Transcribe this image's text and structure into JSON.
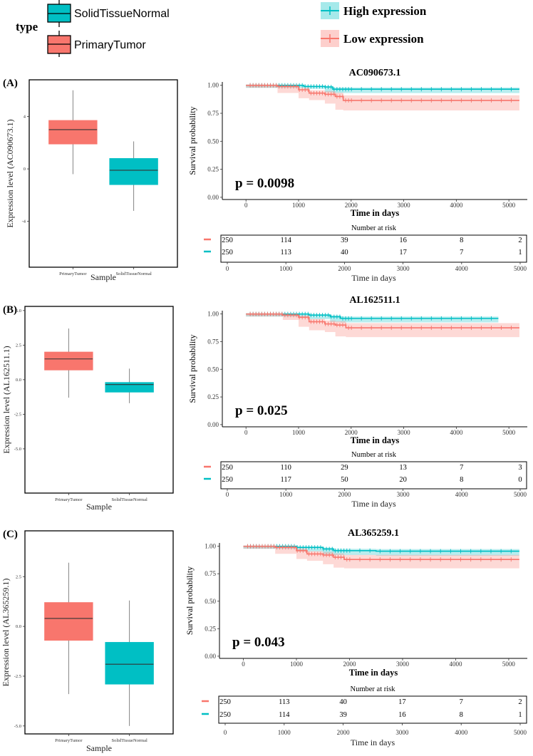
{
  "legend_box": {
    "title": "type",
    "items": [
      {
        "label": "SolidTissueNormal",
        "color": "#00BFC4"
      },
      {
        "label": "PrimaryTumor",
        "color": "#F8766D"
      }
    ]
  },
  "legend_km": {
    "items": [
      {
        "label": "High expression",
        "color": "#00BFC4"
      },
      {
        "label": "Low expression",
        "color": "#F8766D"
      }
    ]
  },
  "chart_data": [
    {
      "panel": "(A)",
      "type": "box",
      "xlabel": "Sample",
      "ylabel": "Expression level (AC090673.1)",
      "categories": [
        "PrimaryTumor",
        "SolidTissueNormal"
      ],
      "yticks": [
        "4",
        "0",
        "-4"
      ],
      "ytick_values": [
        4,
        0,
        -4
      ],
      "ylim": [
        -7.5,
        6.8
      ],
      "boxes": [
        {
          "category": "PrimaryTumor",
          "min": -0.4,
          "q1": 1.9,
          "median": 3.0,
          "q3": 3.7,
          "max": 6.0,
          "color": "#F8766D"
        },
        {
          "category": "SolidTissueNormal",
          "min": -3.2,
          "q1": -1.2,
          "median": -0.1,
          "q3": 0.8,
          "max": 2.1,
          "color": "#00BFC4"
        }
      ]
    },
    {
      "panel": "(A)",
      "type": "line",
      "title": "AC090673.1",
      "xlabel": "Time in days",
      "ylabel": "Survival probability",
      "xticks": [
        "0",
        "1000",
        "2000",
        "3000",
        "4000",
        "5000"
      ],
      "xlim": [
        -450,
        5350
      ],
      "yticks": [
        "0.00",
        "0.25",
        "0.50",
        "0.75",
        "1.00"
      ],
      "ylim": [
        -0.02,
        1.03
      ],
      "pvalue": "p = 0.0098",
      "series": [
        {
          "name": "High expression",
          "color": "#00BFC4",
          "x": [
            0,
            1100,
            1500,
            1650,
            5200
          ],
          "y": [
            1.0,
            0.99,
            0.985,
            0.965,
            0.965
          ]
        },
        {
          "name": "Low expression",
          "color": "#F8766D",
          "x": [
            0,
            600,
            1000,
            1200,
            1500,
            1700,
            1850,
            5200
          ],
          "y": [
            1.0,
            0.99,
            0.96,
            0.93,
            0.92,
            0.9,
            0.865,
            0.865
          ]
        }
      ],
      "risk_table": {
        "title": "Number at risk",
        "xlabel": "Time in days",
        "xticks": [
          "0",
          "1000",
          "2000",
          "3000",
          "4000",
          "5000"
        ],
        "rows": [
          {
            "color": "#F8766D",
            "values": [
              "250",
              "114",
              "39",
              "16",
              "8",
              "2"
            ]
          },
          {
            "color": "#00BFC4",
            "values": [
              "250",
              "113",
              "40",
              "17",
              "7",
              "1"
            ]
          }
        ]
      }
    },
    {
      "panel": "(B)",
      "type": "box",
      "xlabel": "Sample",
      "ylabel": "Expression level (AL162511.1)",
      "categories": [
        "PrimaryTumor",
        "SolidTissueNormal"
      ],
      "yticks": [
        "5.0",
        "2.5",
        "0.0",
        "-2.5",
        "-5.0"
      ],
      "ytick_values": [
        5,
        2.5,
        0,
        -2.5,
        -5
      ],
      "ylim": [
        -8.2,
        5.3
      ],
      "boxes": [
        {
          "category": "PrimaryTumor",
          "min": -1.3,
          "q1": 0.7,
          "median": 1.5,
          "q3": 2.0,
          "max": 3.7,
          "color": "#F8766D"
        },
        {
          "category": "SolidTissueNormal",
          "min": -1.7,
          "q1": -0.9,
          "median": -0.35,
          "q3": -0.2,
          "max": 0.8,
          "color": "#00BFC4"
        }
      ]
    },
    {
      "panel": "(B)",
      "type": "line",
      "title": "AL162511.1",
      "xlabel": "Time in days",
      "ylabel": "Survival probability",
      "xticks": [
        "0",
        "1000",
        "2000",
        "3000",
        "4000",
        "5000"
      ],
      "xlim": [
        -450,
        5350
      ],
      "yticks": [
        "0.00",
        "0.25",
        "0.50",
        "0.75",
        "1.00"
      ],
      "ylim": [
        -0.02,
        1.03
      ],
      "pvalue": "p = 0.025",
      "series": [
        {
          "name": "High expression",
          "color": "#00BFC4",
          "x": [
            0,
            1200,
            1600,
            1800,
            4800
          ],
          "y": [
            1.0,
            0.99,
            0.975,
            0.96,
            0.96
          ]
        },
        {
          "name": "Low expression",
          "color": "#F8766D",
          "x": [
            0,
            700,
            1000,
            1200,
            1500,
            1700,
            1900,
            5200
          ],
          "y": [
            1.0,
            0.99,
            0.97,
            0.93,
            0.91,
            0.9,
            0.875,
            0.875
          ]
        }
      ],
      "risk_table": {
        "title": "Number at risk",
        "xlabel": "Time in days",
        "xticks": [
          "0",
          "1000",
          "2000",
          "3000",
          "4000",
          "5000"
        ],
        "rows": [
          {
            "color": "#F8766D",
            "values": [
              "250",
              "110",
              "29",
              "13",
              "7",
              "3"
            ]
          },
          {
            "color": "#00BFC4",
            "values": [
              "250",
              "117",
              "50",
              "20",
              "8",
              "0"
            ]
          }
        ]
      }
    },
    {
      "panel": "(C)",
      "type": "box",
      "xlabel": "Sample",
      "ylabel": "Expression level (AL365259.1)",
      "categories": [
        "PrimaryTumor",
        "SolidTissueNormal"
      ],
      "yticks": [
        "2.5",
        "0.0",
        "-2.5",
        "-5.0"
      ],
      "ytick_values": [
        2.5,
        0,
        -2.5,
        -5
      ],
      "ylim": [
        -5.4,
        4.8
      ],
      "boxes": [
        {
          "category": "PrimaryTumor",
          "min": -3.4,
          "q1": -0.7,
          "median": 0.4,
          "q3": 1.2,
          "max": 3.2,
          "color": "#F8766D"
        },
        {
          "category": "SolidTissueNormal",
          "min": -5.0,
          "q1": -2.9,
          "median": -1.9,
          "q3": -0.8,
          "max": 1.3,
          "color": "#00BFC4"
        }
      ]
    },
    {
      "panel": "(C)",
      "type": "line",
      "title": "AL365259.1",
      "xlabel": "Time in days",
      "ylabel": "Survival probability",
      "xticks": [
        "0",
        "1000",
        "2000",
        "3000",
        "4000",
        "5000"
      ],
      "xlim": [
        -450,
        5350
      ],
      "yticks": [
        "0.00",
        "0.25",
        "0.50",
        "0.75",
        "1.00"
      ],
      "ylim": [
        -0.02,
        1.03
      ],
      "pvalue": "p = 0.043",
      "series": [
        {
          "name": "High expression",
          "color": "#00BFC4",
          "x": [
            0,
            1000,
            1500,
            1700,
            2500,
            5200
          ],
          "y": [
            1.0,
            0.99,
            0.975,
            0.96,
            0.955,
            0.955
          ]
        },
        {
          "name": "Low expression",
          "color": "#F8766D",
          "x": [
            0,
            600,
            1000,
            1200,
            1500,
            1700,
            1900,
            5200
          ],
          "y": [
            1.0,
            0.99,
            0.96,
            0.93,
            0.92,
            0.9,
            0.88,
            0.88
          ]
        }
      ],
      "risk_table": {
        "title": "Number at risk",
        "xlabel": "Time in days",
        "xticks": [
          "0",
          "1000",
          "2000",
          "3000",
          "4000",
          "5000"
        ],
        "rows": [
          {
            "color": "#F8766D",
            "values": [
              "250",
              "113",
              "40",
              "17",
              "7",
              "2"
            ]
          },
          {
            "color": "#00BFC4",
            "values": [
              "250",
              "114",
              "39",
              "16",
              "8",
              "1"
            ]
          }
        ]
      }
    }
  ]
}
